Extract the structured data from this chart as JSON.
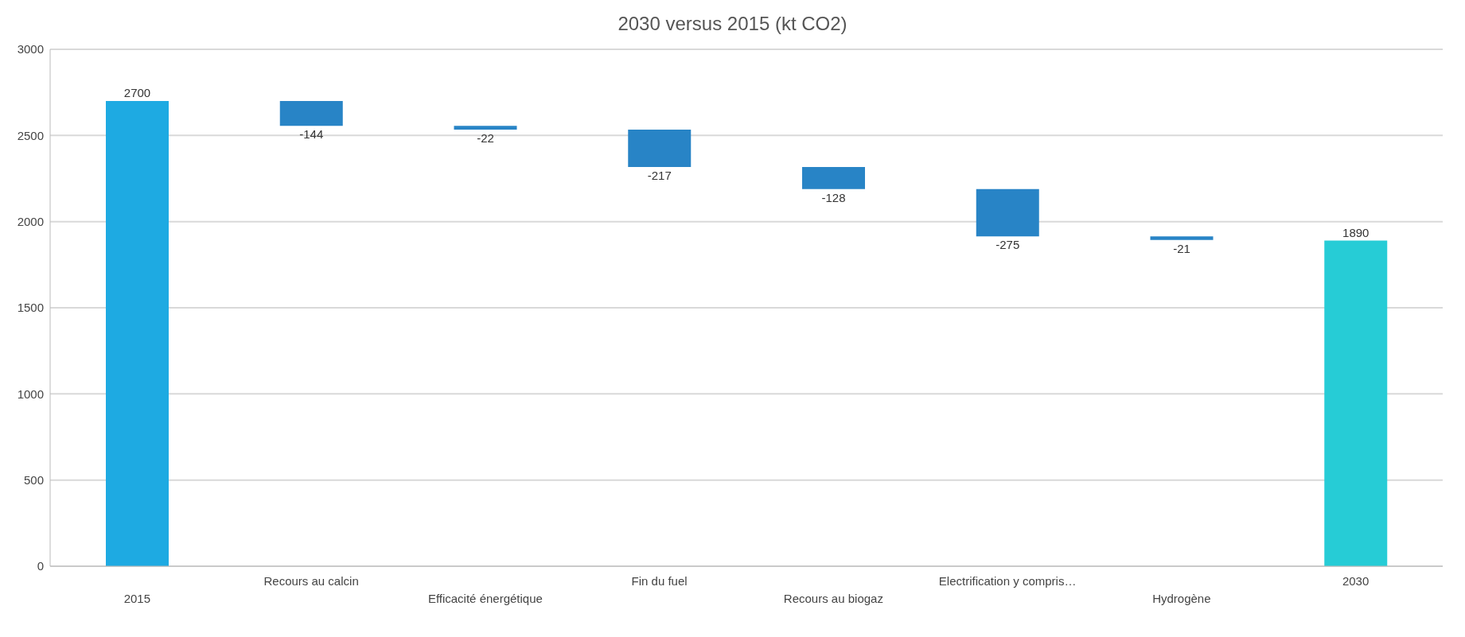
{
  "chart_data": {
    "type": "bar",
    "title": "2030 versus 2015 (kt CO2)",
    "categories": [
      "2015",
      "Recours au calcin",
      "Efficacité énergétique",
      "Fin du fuel",
      "Recours au biogaz",
      "Electrification y compris…",
      "Hydrogène",
      "2030"
    ],
    "values": [
      2700,
      -144,
      -22,
      -217,
      -128,
      -275,
      -21,
      1890
    ],
    "base": [
      0,
      2700,
      2556,
      2534,
      2317,
      2189,
      1914,
      0
    ],
    "colors": [
      "#1eaae2",
      "#2884c6",
      "#2884c6",
      "#2884c6",
      "#2884c6",
      "#2884c6",
      "#2884c6",
      "#26ccd6"
    ],
    "ylim": [
      0,
      3000
    ],
    "yticks": [
      0,
      500,
      1000,
      1500,
      2000,
      2500,
      3000
    ],
    "grid": "y",
    "legend": false,
    "data_labels": true
  }
}
